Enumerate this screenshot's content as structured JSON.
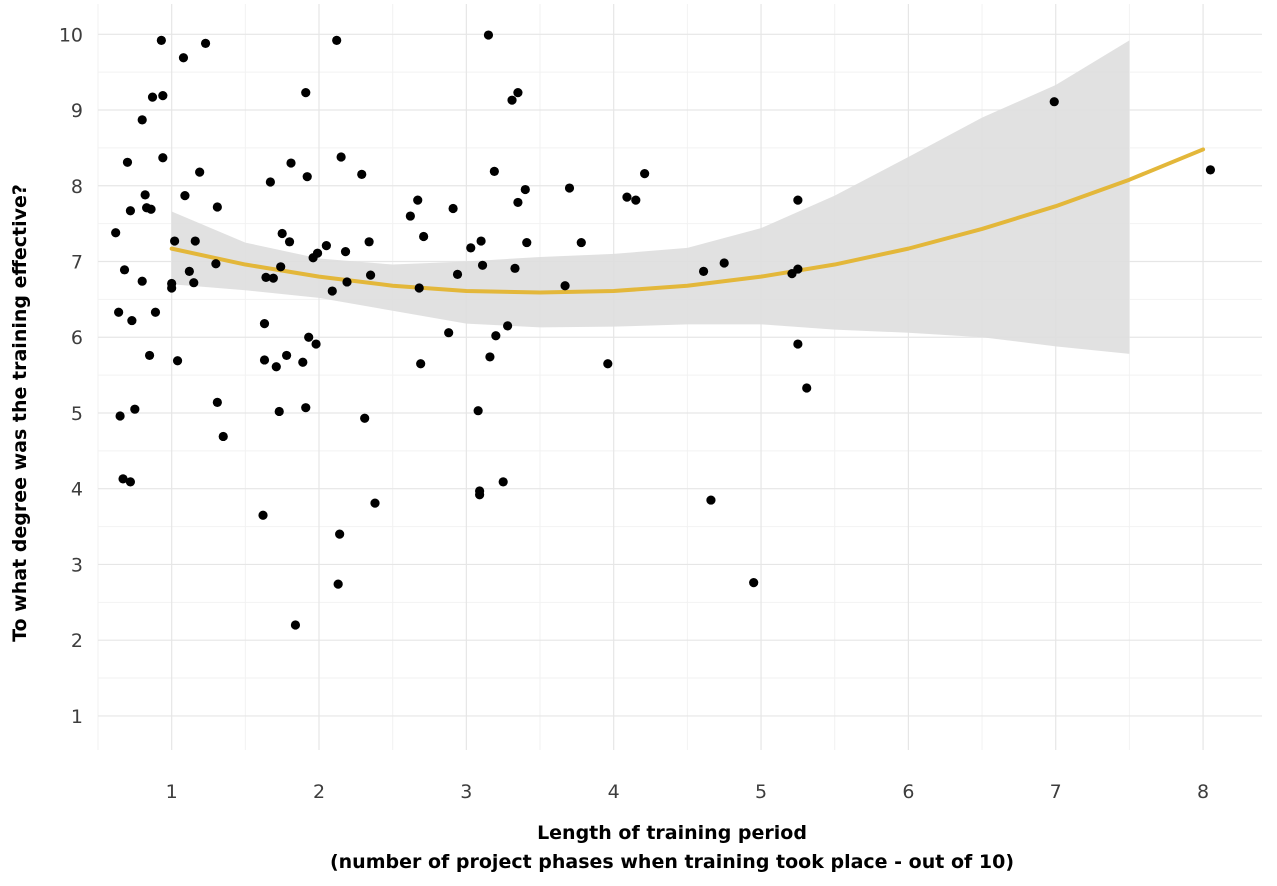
{
  "chart_data": {
    "type": "scatter",
    "xlabel_line1": "Length of training period",
    "xlabel_line2": "(number of project phases when training took place - out of 10)",
    "ylabel": "To what degree was the training effective?",
    "xlim": [
      0.5,
      8.4
    ],
    "ylim": [
      0.55,
      10.4
    ],
    "x_ticks": [
      1,
      2,
      3,
      4,
      5,
      6,
      7,
      8
    ],
    "y_ticks": [
      1,
      2,
      3,
      4,
      5,
      6,
      7,
      8,
      9,
      10
    ],
    "grid": true,
    "colors": {
      "points": "#000000",
      "fit_line": "#e3b73a",
      "confidence_band": "#dedede"
    },
    "points": [
      [
        0.62,
        7.38
      ],
      [
        0.64,
        6.33
      ],
      [
        0.65,
        4.96
      ],
      [
        0.67,
        4.13
      ],
      [
        0.68,
        6.89
      ],
      [
        0.7,
        8.31
      ],
      [
        0.72,
        4.09
      ],
      [
        0.72,
        7.67
      ],
      [
        0.73,
        6.22
      ],
      [
        0.75,
        5.05
      ],
      [
        0.8,
        6.74
      ],
      [
        0.8,
        8.87
      ],
      [
        0.82,
        7.88
      ],
      [
        0.83,
        7.71
      ],
      [
        0.85,
        5.76
      ],
      [
        0.86,
        7.69
      ],
      [
        0.87,
        9.17
      ],
      [
        0.89,
        6.33
      ],
      [
        0.93,
        9.92
      ],
      [
        0.94,
        8.37
      ],
      [
        0.94,
        9.19
      ],
      [
        1.0,
        6.71
      ],
      [
        1.0,
        6.65
      ],
      [
        1.02,
        7.27
      ],
      [
        1.04,
        5.69
      ],
      [
        1.08,
        9.69
      ],
      [
        1.09,
        7.87
      ],
      [
        1.12,
        6.87
      ],
      [
        1.15,
        6.72
      ],
      [
        1.16,
        7.27
      ],
      [
        1.19,
        8.18
      ],
      [
        1.23,
        9.88
      ],
      [
        1.3,
        6.97
      ],
      [
        1.31,
        7.72
      ],
      [
        1.31,
        5.14
      ],
      [
        1.35,
        4.69
      ],
      [
        1.62,
        3.65
      ],
      [
        1.63,
        6.18
      ],
      [
        1.63,
        5.7
      ],
      [
        1.64,
        6.79
      ],
      [
        1.67,
        8.05
      ],
      [
        1.69,
        6.78
      ],
      [
        1.71,
        5.61
      ],
      [
        1.73,
        5.02
      ],
      [
        1.74,
        6.93
      ],
      [
        1.75,
        7.37
      ],
      [
        1.78,
        5.76
      ],
      [
        1.8,
        7.26
      ],
      [
        1.81,
        8.3
      ],
      [
        1.84,
        2.2
      ],
      [
        1.89,
        5.67
      ],
      [
        1.91,
        9.23
      ],
      [
        1.91,
        5.07
      ],
      [
        1.92,
        8.12
      ],
      [
        1.93,
        6.0
      ],
      [
        1.96,
        7.05
      ],
      [
        1.98,
        5.91
      ],
      [
        1.99,
        7.11
      ],
      [
        2.05,
        7.21
      ],
      [
        2.09,
        6.61
      ],
      [
        2.12,
        9.92
      ],
      [
        2.13,
        2.74
      ],
      [
        2.14,
        3.4
      ],
      [
        2.15,
        8.38
      ],
      [
        2.18,
        7.13
      ],
      [
        2.19,
        6.73
      ],
      [
        2.29,
        8.15
      ],
      [
        2.31,
        4.93
      ],
      [
        2.34,
        7.26
      ],
      [
        2.35,
        6.82
      ],
      [
        2.38,
        3.81
      ],
      [
        2.62,
        7.6
      ],
      [
        2.67,
        7.81
      ],
      [
        2.68,
        6.65
      ],
      [
        2.69,
        5.65
      ],
      [
        2.71,
        7.33
      ],
      [
        2.88,
        6.06
      ],
      [
        2.91,
        7.7
      ],
      [
        2.94,
        6.83
      ],
      [
        3.03,
        7.18
      ],
      [
        3.08,
        5.03
      ],
      [
        3.09,
        3.92
      ],
      [
        3.09,
        3.97
      ],
      [
        3.1,
        7.27
      ],
      [
        3.11,
        6.95
      ],
      [
        3.15,
        9.99
      ],
      [
        3.16,
        5.74
      ],
      [
        3.19,
        8.19
      ],
      [
        3.2,
        6.02
      ],
      [
        3.25,
        4.09
      ],
      [
        3.28,
        6.15
      ],
      [
        3.31,
        9.13
      ],
      [
        3.33,
        6.91
      ],
      [
        3.35,
        9.23
      ],
      [
        3.35,
        7.78
      ],
      [
        3.4,
        7.95
      ],
      [
        3.41,
        7.25
      ],
      [
        3.67,
        6.68
      ],
      [
        3.7,
        7.97
      ],
      [
        3.78,
        7.25
      ],
      [
        3.96,
        5.65
      ],
      [
        4.09,
        7.85
      ],
      [
        4.15,
        7.81
      ],
      [
        4.21,
        8.16
      ],
      [
        4.61,
        6.87
      ],
      [
        4.66,
        3.85
      ],
      [
        4.75,
        6.98
      ],
      [
        4.95,
        2.76
      ],
      [
        5.21,
        6.84
      ],
      [
        5.25,
        5.91
      ],
      [
        5.25,
        7.81
      ],
      [
        5.25,
        6.9
      ],
      [
        5.31,
        5.33
      ],
      [
        6.99,
        9.11
      ],
      [
        8.05,
        8.21
      ]
    ],
    "fit_curve": [
      [
        1.0,
        7.17
      ],
      [
        1.5,
        6.96
      ],
      [
        2.0,
        6.8
      ],
      [
        2.5,
        6.68
      ],
      [
        3.0,
        6.61
      ],
      [
        3.5,
        6.59
      ],
      [
        4.0,
        6.61
      ],
      [
        4.5,
        6.68
      ],
      [
        5.0,
        6.8
      ],
      [
        5.5,
        6.96
      ],
      [
        6.0,
        7.17
      ],
      [
        6.5,
        7.43
      ],
      [
        7.0,
        7.73
      ],
      [
        7.5,
        8.08
      ],
      [
        8.0,
        8.48
      ]
    ],
    "band_upper": [
      [
        1.0,
        7.66
      ],
      [
        1.5,
        7.25
      ],
      [
        2.0,
        7.04
      ],
      [
        2.5,
        6.96
      ],
      [
        3.0,
        7.0
      ],
      [
        3.5,
        7.06
      ],
      [
        4.0,
        7.1
      ],
      [
        4.5,
        7.18
      ],
      [
        5.0,
        7.44
      ],
      [
        5.5,
        7.87
      ],
      [
        6.0,
        8.38
      ],
      [
        6.5,
        8.9
      ],
      [
        7.0,
        9.33
      ],
      [
        7.5,
        9.92
      ]
    ],
    "band_lower": [
      [
        7.5,
        5.78
      ],
      [
        7.0,
        5.88
      ],
      [
        6.5,
        6.0
      ],
      [
        6.0,
        6.06
      ],
      [
        5.5,
        6.1
      ],
      [
        5.0,
        6.17
      ],
      [
        4.5,
        6.17
      ],
      [
        4.0,
        6.14
      ],
      [
        3.5,
        6.13
      ],
      [
        3.0,
        6.18
      ],
      [
        2.5,
        6.35
      ],
      [
        2.0,
        6.52
      ],
      [
        1.5,
        6.62
      ],
      [
        1.0,
        6.7
      ]
    ]
  }
}
